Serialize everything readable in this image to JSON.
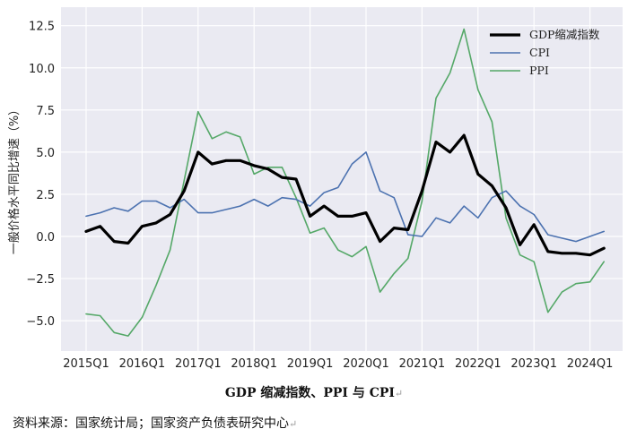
{
  "chart_data": {
    "type": "line",
    "title": "GDP 缩减指数、PPI 与 CPI",
    "xlabel": "",
    "ylabel": "一般价格水平同比增速（%）",
    "ylim": [
      -6.8,
      13.6
    ],
    "yticks": [
      -5.0,
      -2.5,
      0.0,
      2.5,
      5.0,
      7.5,
      10.0,
      12.5
    ],
    "ytick_labels": [
      "−5.0",
      "−2.5",
      "0.0",
      "2.5",
      "5.0",
      "7.5",
      "10.0",
      "12.5"
    ],
    "x": [
      "2015Q1",
      "2015Q2",
      "2015Q3",
      "2015Q4",
      "2016Q1",
      "2016Q2",
      "2016Q3",
      "2016Q4",
      "2017Q1",
      "2017Q2",
      "2017Q3",
      "2017Q4",
      "2018Q1",
      "2018Q2",
      "2018Q3",
      "2018Q4",
      "2019Q1",
      "2019Q2",
      "2019Q3",
      "2019Q4",
      "2020Q1",
      "2020Q2",
      "2020Q3",
      "2020Q4",
      "2021Q1",
      "2021Q2",
      "2021Q3",
      "2021Q4",
      "2022Q1",
      "2022Q2",
      "2022Q3",
      "2022Q4",
      "2023Q1",
      "2023Q2",
      "2023Q3",
      "2023Q4",
      "2024Q1",
      "2024Q2"
    ],
    "xtick_labels": [
      "2015Q1",
      "2016Q1",
      "2017Q1",
      "2018Q1",
      "2019Q1",
      "2020Q1",
      "2021Q1",
      "2022Q1",
      "2023Q1",
      "2024Q1"
    ],
    "grid": true,
    "legend_position": "top-right",
    "series": [
      {
        "name": "GDP缩减指数",
        "color": "#000000",
        "width": 3.2,
        "values": [
          0.3,
          0.6,
          -0.3,
          -0.4,
          0.6,
          0.8,
          1.3,
          2.7,
          5.0,
          4.3,
          4.5,
          4.5,
          4.2,
          4.0,
          3.5,
          3.4,
          1.2,
          1.8,
          1.2,
          1.2,
          1.4,
          -0.3,
          0.5,
          0.4,
          2.7,
          5.6,
          5.0,
          6.0,
          3.7,
          3.0,
          1.7,
          -0.5,
          0.7,
          -0.9,
          -1.0,
          -1.0,
          -1.1,
          -0.7
        ]
      },
      {
        "name": "CPI",
        "color": "#4c72b0",
        "width": 1.6,
        "values": [
          1.2,
          1.4,
          1.7,
          1.5,
          2.1,
          2.1,
          1.7,
          2.2,
          1.4,
          1.4,
          1.6,
          1.8,
          2.2,
          1.8,
          2.3,
          2.2,
          1.8,
          2.6,
          2.9,
          4.3,
          5.0,
          2.7,
          2.3,
          0.1,
          0.0,
          1.1,
          0.8,
          1.8,
          1.1,
          2.3,
          2.7,
          1.8,
          1.3,
          0.1,
          -0.1,
          -0.3,
          0.0,
          0.3
        ]
      },
      {
        "name": "PPI",
        "color": "#55a868",
        "width": 1.6,
        "values": [
          -4.6,
          -4.7,
          -5.7,
          -5.9,
          -4.8,
          -2.9,
          -0.8,
          3.3,
          7.4,
          5.8,
          6.2,
          5.9,
          3.7,
          4.1,
          4.1,
          2.3,
          0.2,
          0.5,
          -0.8,
          -1.2,
          -0.6,
          -3.3,
          -2.2,
          -1.3,
          2.1,
          8.2,
          9.7,
          12.3,
          8.7,
          6.8,
          1.1,
          -1.1,
          -1.5,
          -4.5,
          -3.3,
          -2.8,
          -2.7,
          -1.5
        ]
      }
    ]
  },
  "footer": {
    "caption": "GDP 缩减指数、PPI 与 CPI",
    "source": "资料来源：国家统计局；国家资产负债表研究中心",
    "return_mark": "↵"
  }
}
